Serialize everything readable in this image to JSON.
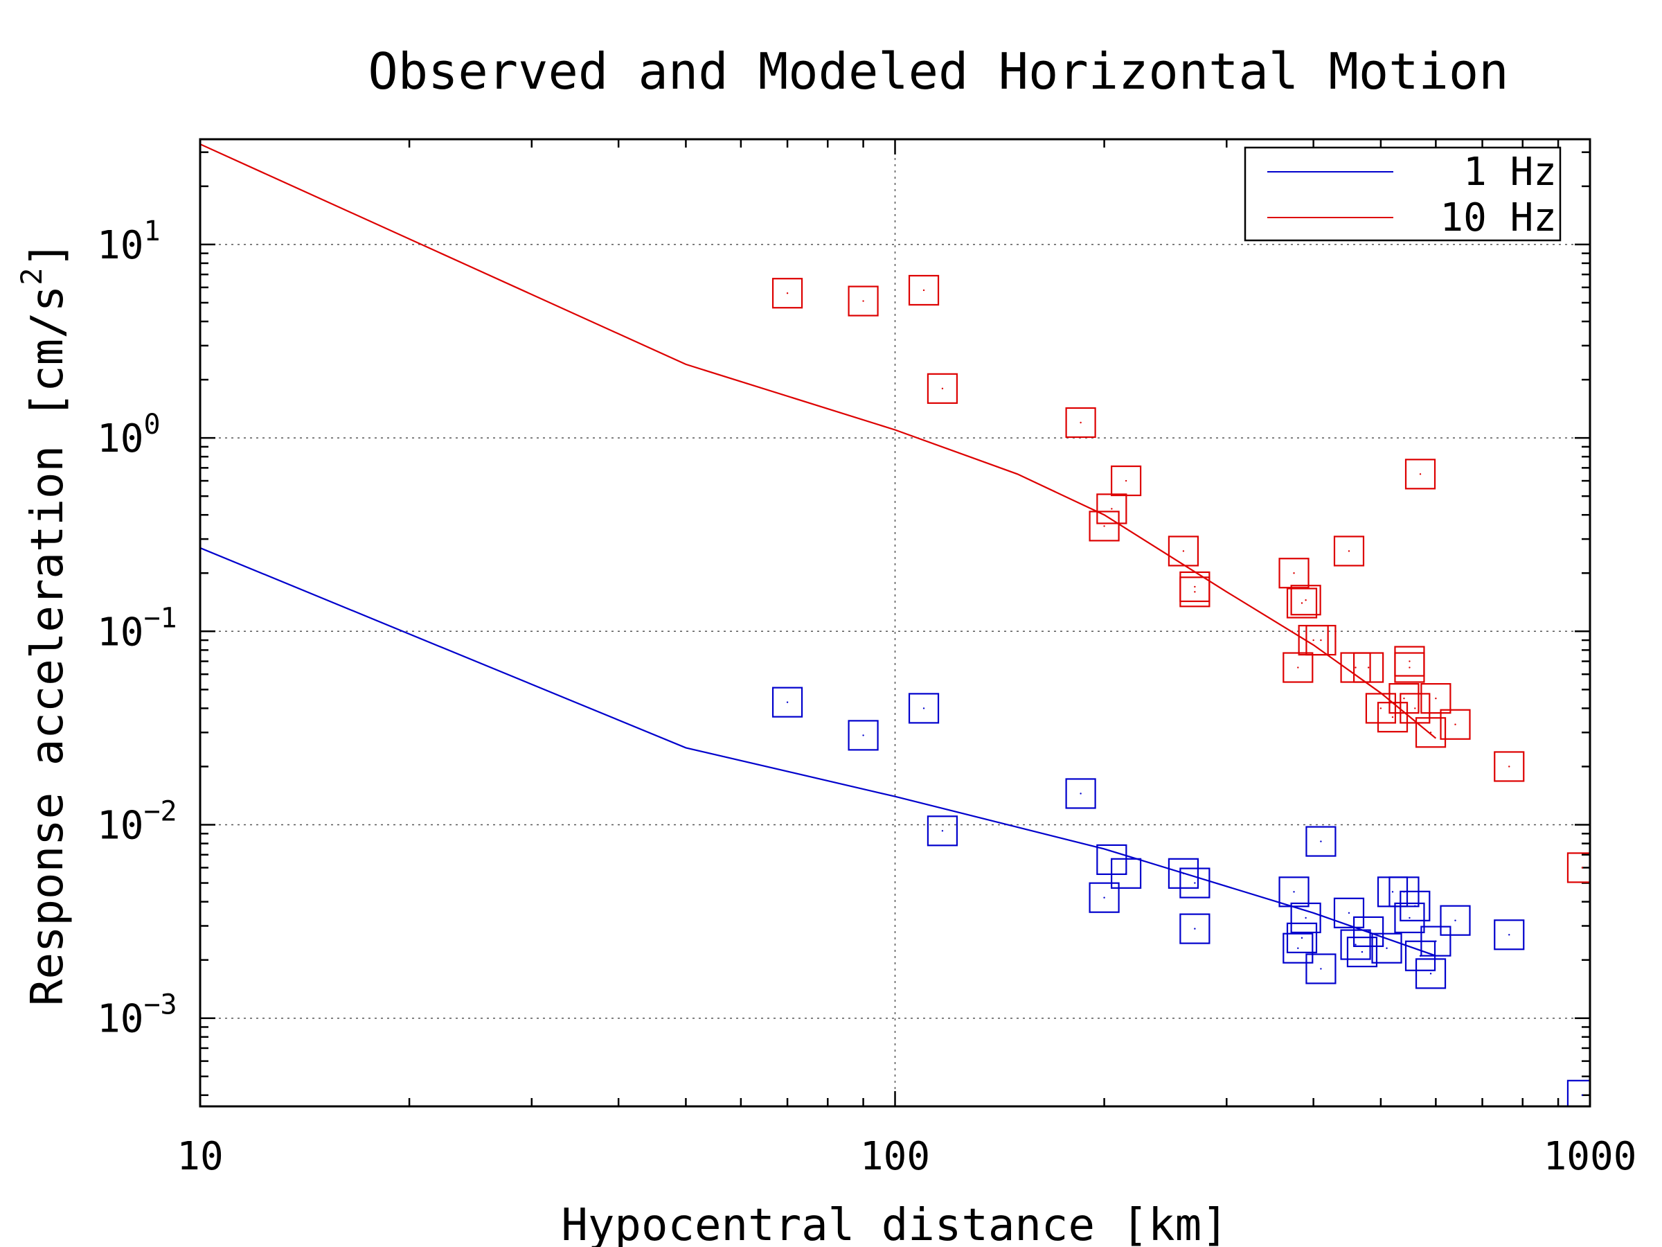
{
  "chart_data": {
    "type": "scatter",
    "title": "Observed and Modeled Horizontal Motion",
    "xlabel": "Hypocentral distance [km]",
    "ylabel": "Response acceleration [cm/s",
    "ylabel_sup": "2",
    "ylabel_end": "]",
    "xscale": "log",
    "yscale": "log",
    "xlim": [
      10,
      1000
    ],
    "ylim": [
      0.00035,
      35
    ],
    "x_ticks": [
      {
        "value": 10,
        "label": "10"
      },
      {
        "value": 100,
        "label": "100"
      },
      {
        "value": 1000,
        "label": "1000"
      }
    ],
    "y_ticks": [
      {
        "value": 10,
        "base": "10",
        "exp": "1"
      },
      {
        "value": 1,
        "base": "10",
        "exp": "0"
      },
      {
        "value": 0.1,
        "base": "10",
        "exp": "−1"
      },
      {
        "value": 0.01,
        "base": "10",
        "exp": "−2"
      },
      {
        "value": 0.001,
        "base": "10",
        "exp": "−3"
      }
    ],
    "grid": true,
    "legend_position": "top-right",
    "colors": {
      "hz1": "#0000cc",
      "hz10": "#dd0000"
    },
    "lines": [
      {
        "name": "1 Hz",
        "color": "#0000cc",
        "x": [
          10,
          50,
          100,
          200,
          400,
          600
        ],
        "y": [
          0.27,
          0.025,
          0.014,
          0.0075,
          0.0035,
          0.0021
        ]
      },
      {
        "name": "10 Hz",
        "color": "#dd0000",
        "x": [
          10,
          50,
          100,
          150,
          200,
          300,
          400,
          500,
          600
        ],
        "y": [
          33,
          2.4,
          1.1,
          0.65,
          0.4,
          0.16,
          0.085,
          0.048,
          0.028
        ]
      }
    ],
    "points": [
      {
        "series": "10 Hz",
        "color": "#dd0000",
        "x": [
          70,
          90,
          110,
          117,
          185,
          200,
          205,
          215,
          260,
          270,
          270,
          375,
          380,
          385,
          390,
          400,
          410,
          450,
          460,
          480,
          500,
          520,
          540,
          550,
          550,
          560,
          570,
          590,
          600,
          640,
          765,
          975
        ],
        "y": [
          5.6,
          5.1,
          5.8,
          1.8,
          1.2,
          0.35,
          0.43,
          0.6,
          0.26,
          0.17,
          0.16,
          0.2,
          0.065,
          0.14,
          0.145,
          0.09,
          0.09,
          0.26,
          0.065,
          0.065,
          0.04,
          0.036,
          0.045,
          0.065,
          0.07,
          0.04,
          0.65,
          0.03,
          0.045,
          0.033,
          0.02,
          0.006
        ]
      },
      {
        "series": "1 Hz",
        "color": "#0000cc",
        "x": [
          70,
          90,
          110,
          117,
          185,
          200,
          205,
          215,
          260,
          270,
          270,
          375,
          380,
          385,
          390,
          410,
          410,
          450,
          460,
          470,
          480,
          510,
          520,
          540,
          550,
          560,
          570,
          590,
          600,
          640,
          765,
          975
        ],
        "y": [
          0.043,
          0.029,
          0.04,
          0.0093,
          0.0145,
          0.0042,
          0.0066,
          0.0056,
          0.0056,
          0.005,
          0.0029,
          0.0045,
          0.0023,
          0.0026,
          0.0033,
          0.0018,
          0.0082,
          0.0035,
          0.0024,
          0.0022,
          0.0028,
          0.0023,
          0.0045,
          0.0045,
          0.0033,
          0.0038,
          0.0021,
          0.0017,
          0.0025,
          0.0032,
          0.0027,
          0.0004
        ]
      }
    ]
  }
}
